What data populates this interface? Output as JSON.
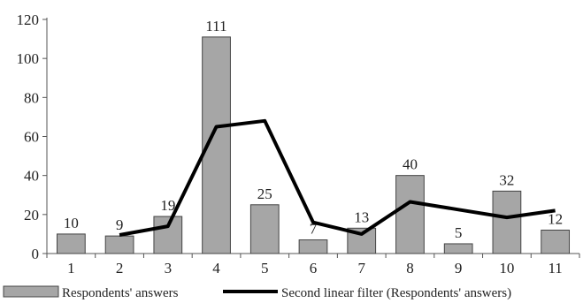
{
  "chart_data": {
    "type": "bar",
    "categories": [
      "1",
      "2",
      "3",
      "4",
      "5",
      "6",
      "7",
      "8",
      "9",
      "10",
      "11"
    ],
    "series": [
      {
        "name": "Respondents' answers",
        "type": "bar",
        "values": [
          10,
          9,
          19,
          111,
          25,
          7,
          13,
          40,
          5,
          32,
          12
        ],
        "color": "#a6a6a6"
      },
      {
        "name": "Second linear filter (Respondents' answers)",
        "type": "line",
        "x": [
          "2",
          "3",
          "4",
          "5",
          "6",
          "7",
          "8",
          "9",
          "10",
          "11"
        ],
        "values": [
          9.5,
          14,
          65,
          68,
          16,
          10,
          26.5,
          22.5,
          18.5,
          22
        ],
        "color": "#000000"
      }
    ],
    "y_ticks": [
      0,
      20,
      40,
      60,
      80,
      100,
      120
    ],
    "ylim": [
      0,
      120
    ],
    "grid": false,
    "legend_position": "bottom"
  }
}
